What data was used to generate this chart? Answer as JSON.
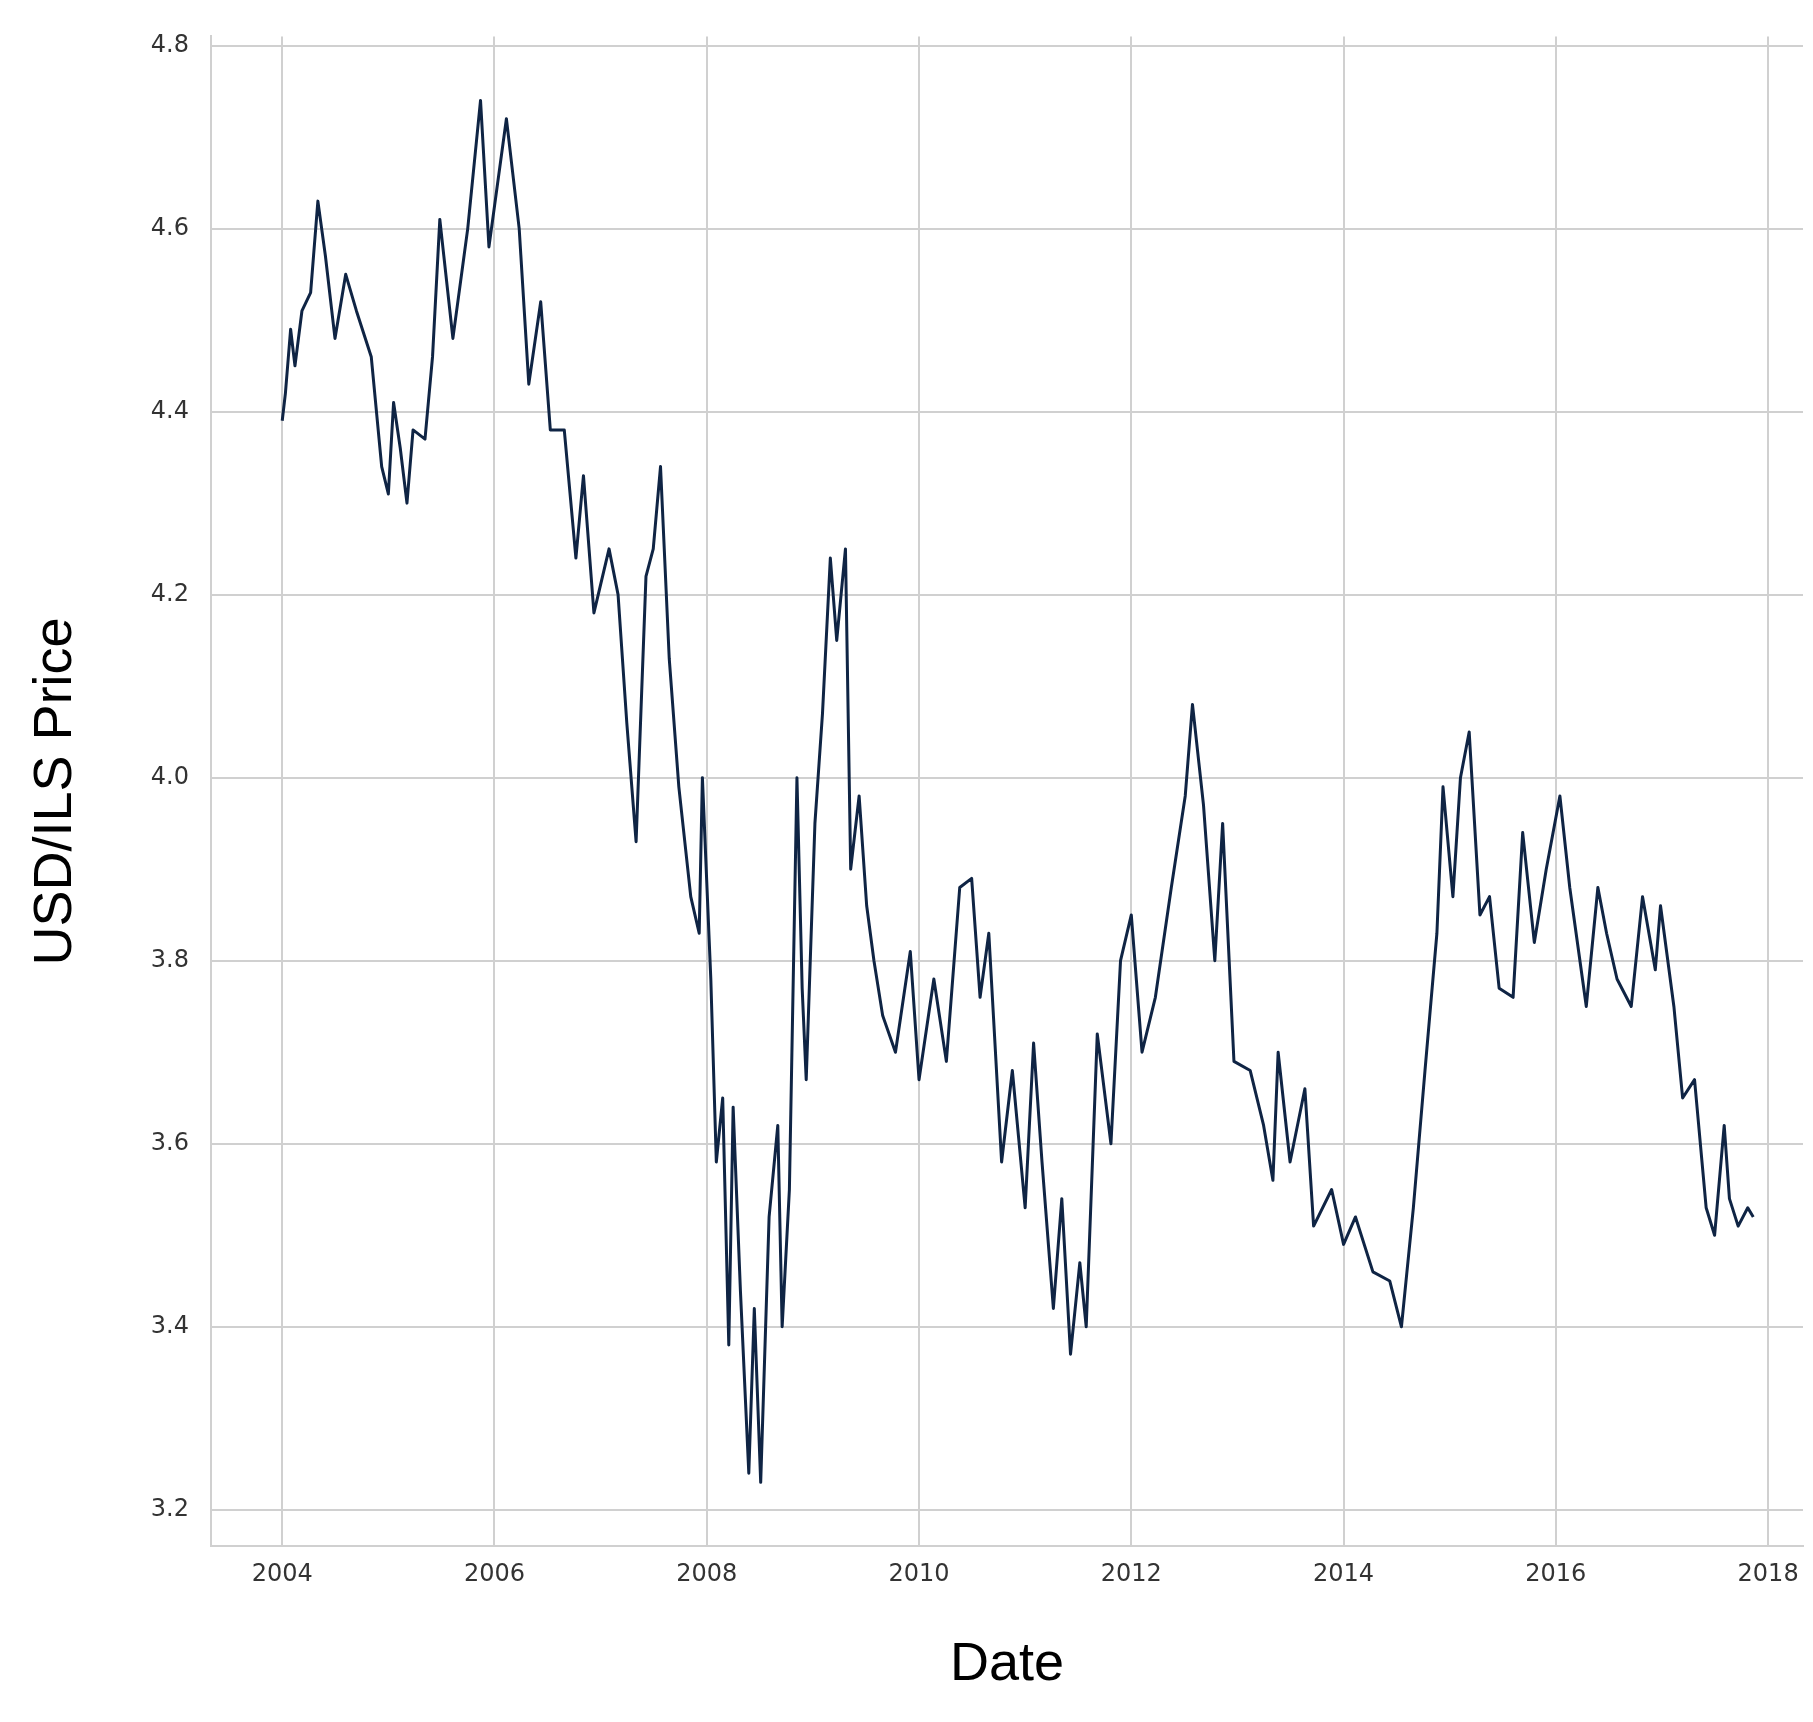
{
  "chart_data": {
    "type": "line",
    "xlabel": "Date",
    "ylabel": "USD/ILS Price",
    "x": [
      "2004-01-01",
      "2004-01-12",
      "2004-01-30",
      "2004-02-14",
      "2004-03-09",
      "2004-04-08",
      "2004-05-03",
      "2004-05-29",
      "2004-07-01",
      "2004-08-07",
      "2004-09-13",
      "2004-11-03",
      "2004-12-09",
      "2005-01-01",
      "2005-01-19",
      "2005-02-11",
      "2005-03-06",
      "2005-03-27",
      "2005-05-07",
      "2005-06-02",
      "2005-06-27",
      "2005-08-11",
      "2005-10-01",
      "2005-11-14",
      "2005-12-13",
      "2006-02-11",
      "2006-03-27",
      "2006-04-29",
      "2006-06-09",
      "2006-07-12",
      "2006-08-29",
      "2006-10-08",
      "2006-11-03",
      "2006-12-09",
      "2007-01-30",
      "2007-03-02",
      "2007-04-01",
      "2007-05-03",
      "2007-06-06",
      "2007-07-01",
      "2007-07-26",
      "2007-08-25",
      "2007-09-27",
      "2007-11-07",
      "2007-12-06",
      "2007-12-17",
      "2008-01-15",
      "2008-02-03",
      "2008-02-25",
      "2008-03-17",
      "2008-04-01",
      "2008-04-26",
      "2008-05-25",
      "2008-06-13",
      "2008-07-05",
      "2008-08-03",
      "2008-09-02",
      "2008-09-17",
      "2008-10-12",
      "2008-11-07",
      "2008-11-25",
      "2008-12-09",
      "2009-01-08",
      "2009-02-03",
      "2009-03-02",
      "2009-03-24",
      "2009-04-23",
      "2009-05-11",
      "2009-06-09",
      "2009-07-05",
      "2009-07-30",
      "2009-08-29",
      "2009-10-12",
      "2009-12-02",
      "2010-01-01",
      "2010-02-21",
      "2010-04-05",
      "2010-05-21",
      "2010-07-01",
      "2010-07-30",
      "2010-08-29",
      "2010-10-12",
      "2010-11-18",
      "2011-01-01",
      "2011-01-30",
      "2011-02-28",
      "2011-04-08",
      "2011-05-07",
      "2011-06-06",
      "2011-07-08",
      "2011-07-30",
      "2011-09-06",
      "2011-10-23",
      "2011-11-25",
      "2012-01-01",
      "2012-02-07",
      "2012-03-24",
      "2012-05-18",
      "2012-07-05",
      "2012-07-30",
      "2012-09-06",
      "2012-10-15",
      "2012-11-11",
      "2012-12-20",
      "2013-02-14",
      "2013-04-01",
      "2013-05-03",
      "2013-05-21",
      "2013-07-01",
      "2013-08-21",
      "2013-09-20",
      "2013-11-21",
      "2014-01-01",
      "2014-02-11",
      "2014-04-12",
      "2014-06-09",
      "2014-07-19",
      "2014-08-29",
      "2014-10-08",
      "2014-11-18",
      "2014-12-09",
      "2015-01-12",
      "2015-02-07",
      "2015-03-09",
      "2015-04-15",
      "2015-05-18",
      "2015-06-20",
      "2015-08-07",
      "2015-09-09",
      "2015-10-19",
      "2015-11-29",
      "2016-01-15",
      "2016-02-18",
      "2016-04-15",
      "2016-05-25",
      "2016-06-24",
      "2016-07-30",
      "2016-09-17",
      "2016-10-26",
      "2016-12-09",
      "2016-12-27",
      "2017-02-11",
      "2017-03-13",
      "2017-04-23",
      "2017-06-02",
      "2017-07-01",
      "2017-08-03",
      "2017-08-21",
      "2017-09-20",
      "2017-10-23",
      "2017-11-11"
    ],
    "series": [
      {
        "color": "#0f2444",
        "values": [
          4.39,
          4.42,
          4.49,
          4.45,
          4.51,
          4.53,
          4.63,
          4.57,
          4.48,
          4.55,
          4.51,
          4.46,
          4.34,
          4.31,
          4.41,
          4.36,
          4.3,
          4.38,
          4.37,
          4.46,
          4.61,
          4.48,
          4.6,
          4.74,
          4.58,
          4.72,
          4.6,
          4.43,
          4.52,
          4.38,
          4.38,
          4.24,
          4.33,
          4.18,
          4.25,
          4.2,
          4.06,
          3.93,
          4.22,
          4.25,
          4.34,
          4.13,
          3.99,
          3.87,
          3.83,
          4.0,
          3.78,
          3.58,
          3.65,
          3.38,
          3.64,
          3.44,
          3.24,
          3.42,
          3.23,
          3.52,
          3.62,
          3.4,
          3.55,
          4.0,
          3.77,
          3.67,
          3.95,
          4.07,
          4.24,
          4.15,
          4.25,
          3.9,
          3.98,
          3.86,
          3.8,
          3.74,
          3.7,
          3.81,
          3.67,
          3.78,
          3.69,
          3.88,
          3.89,
          3.76,
          3.83,
          3.58,
          3.68,
          3.53,
          3.71,
          3.58,
          3.42,
          3.54,
          3.37,
          3.47,
          3.4,
          3.72,
          3.6,
          3.8,
          3.85,
          3.7,
          3.76,
          3.88,
          3.98,
          4.08,
          3.97,
          3.8,
          3.95,
          3.69,
          3.68,
          3.62,
          3.56,
          3.7,
          3.58,
          3.66,
          3.51,
          3.55,
          3.49,
          3.52,
          3.46,
          3.45,
          3.4,
          3.53,
          3.68,
          3.83,
          3.99,
          3.87,
          4.0,
          4.05,
          3.85,
          3.87,
          3.77,
          3.76,
          3.94,
          3.82,
          3.9,
          3.98,
          3.88,
          3.75,
          3.88,
          3.83,
          3.78,
          3.75,
          3.87,
          3.79,
          3.86,
          3.75,
          3.65,
          3.67,
          3.53,
          3.5,
          3.62,
          3.54,
          3.51,
          3.53,
          3.52
        ]
      }
    ],
    "xlim": [
      "2003-05-01",
      "2018-05-01"
    ],
    "xticks": [
      "2004",
      "2006",
      "2008",
      "2010",
      "2012",
      "2014",
      "2016",
      "2018"
    ],
    "ylim": [
      3.16,
      4.81
    ],
    "yticks": [
      3.2,
      3.4,
      3.6,
      3.8,
      {
        "value": 4,
        "label": "4.0"
      },
      4.2,
      4.4,
      4.6,
      4.8
    ],
    "grid": true,
    "legend": false,
    "marker": "none",
    "line_style": "solid"
  }
}
